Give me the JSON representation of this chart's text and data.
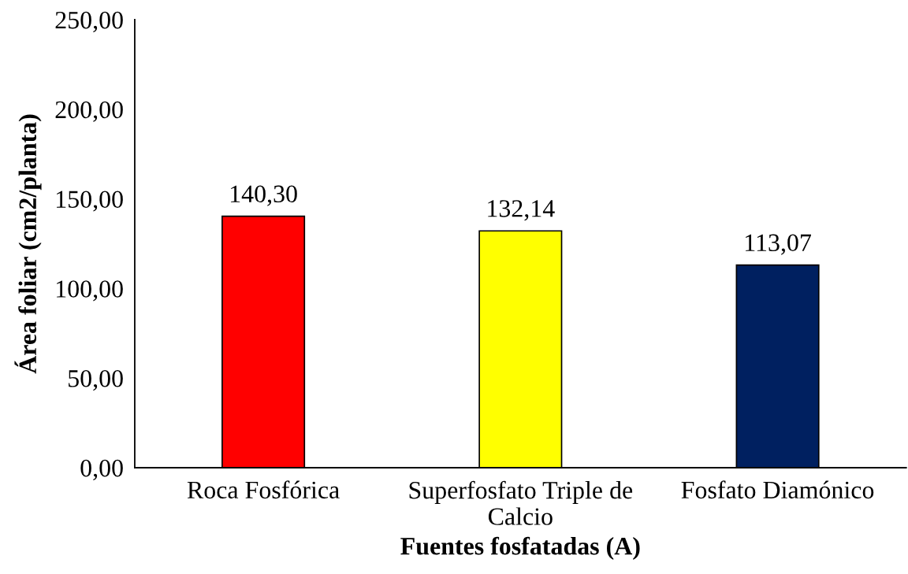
{
  "chart_data": {
    "type": "bar",
    "xlabel": "Fuentes fosfatadas (A)",
    "ylabel": "Área foliar (cm2/planta)",
    "categories": [
      "Roca Fosfórica",
      "Superfosfato Triple de\nCalcio",
      "Fosfato Diamónico"
    ],
    "values": [
      140.3,
      132.14,
      113.07
    ],
    "colors": [
      "#ff0000",
      "#ffff00",
      "#002060"
    ],
    "value_labels": [
      "140,30",
      "132,14",
      "113,07"
    ],
    "ylim": [
      0,
      250
    ],
    "yticks": [
      {
        "value": 0,
        "label": "0,00"
      },
      {
        "value": 50,
        "label": "50,00"
      },
      {
        "value": 100,
        "label": "100,00"
      },
      {
        "value": 150,
        "label": "150,00"
      },
      {
        "value": 200,
        "label": "200,00"
      },
      {
        "value": 250,
        "label": "250,00"
      }
    ],
    "grid": false
  }
}
